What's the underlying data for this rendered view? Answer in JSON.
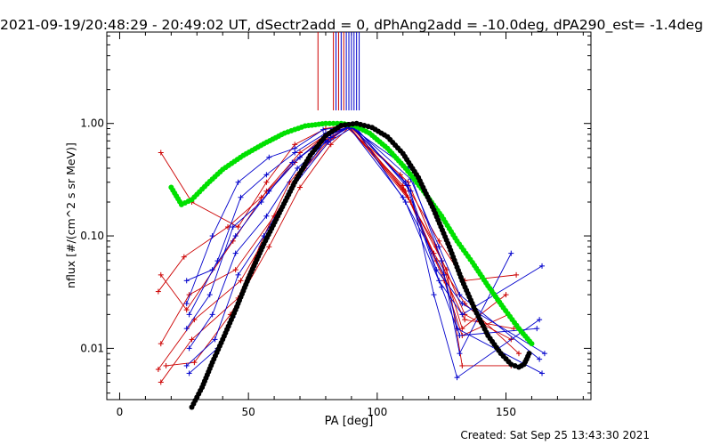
{
  "chart_data": {
    "type": "line",
    "title": "2021-09-19/20:48:29 - 20:49:02 UT, dSectr2add = 0, dPhAng2add = -10.0deg, dPA290_est= -1.4deg",
    "xlabel": "PA [deg]",
    "ylabel": "nflux [#/(cm^2 s sr MeV)]",
    "footer": "Created: Sat Sep 25 13:43:30 2021",
    "xlim": [
      -5,
      183
    ],
    "ylim": [
      0.0035,
      6.5
    ],
    "y_scale": "log",
    "x_ticks": [
      "0",
      "50",
      "100",
      "150"
    ],
    "x_tick_values": [
      0,
      50,
      100,
      150
    ],
    "y_ticks": [
      "0.01",
      "0.10",
      "1.00"
    ],
    "y_tick_values": [
      0.01,
      0.1,
      1.0
    ],
    "grid": false,
    "colors": {
      "red": "#cc0000",
      "blue": "#0000cc",
      "green": "#00e000",
      "black": "#000000"
    },
    "vertical_markers": [
      {
        "x": 77,
        "color": "red"
      },
      {
        "x": 83,
        "color": "red"
      },
      {
        "x": 84,
        "color": "blue"
      },
      {
        "x": 85,
        "color": "red"
      },
      {
        "x": 86,
        "color": "blue"
      },
      {
        "x": 87,
        "color": "red"
      },
      {
        "x": 88,
        "color": "blue"
      },
      {
        "x": 89,
        "color": "blue"
      },
      {
        "x": 90,
        "color": "blue"
      },
      {
        "x": 91,
        "color": "blue"
      },
      {
        "x": 92,
        "color": "blue"
      },
      {
        "x": 93,
        "color": "blue"
      }
    ],
    "series": [
      {
        "color": "red",
        "x": [
          16,
          28,
          46,
          57,
          68,
          80,
          88,
          110,
          123,
          134,
          152
        ],
        "y": [
          0.55,
          0.2,
          0.12,
          0.3,
          0.65,
          0.9,
          0.97,
          0.26,
          0.08,
          0.02,
          0.012
        ]
      },
      {
        "color": "red",
        "x": [
          16,
          26,
          44,
          57,
          70,
          82,
          89,
          112,
          125,
          133,
          150
        ],
        "y": [
          0.045,
          0.022,
          0.09,
          0.25,
          0.55,
          0.85,
          0.96,
          0.3,
          0.06,
          0.015,
          0.03
        ]
      },
      {
        "color": "red",
        "x": [
          15,
          25,
          42,
          55,
          68,
          80,
          90,
          111,
          122,
          134,
          155
        ],
        "y": [
          0.032,
          0.065,
          0.12,
          0.22,
          0.45,
          0.8,
          0.94,
          0.25,
          0.07,
          0.025,
          0.009
        ]
      },
      {
        "color": "red",
        "x": [
          16,
          27,
          45,
          60,
          72,
          83,
          89,
          113,
          127,
          133,
          152
        ],
        "y": [
          0.011,
          0.03,
          0.05,
          0.15,
          0.4,
          0.75,
          0.95,
          0.2,
          0.05,
          0.007,
          0.007
        ]
      },
      {
        "color": "red",
        "x": [
          15,
          29,
          47,
          59,
          69,
          81,
          88,
          109,
          124,
          134,
          154
        ],
        "y": [
          0.0065,
          0.018,
          0.04,
          0.12,
          0.35,
          0.7,
          0.93,
          0.35,
          0.09,
          0.04,
          0.045
        ]
      },
      {
        "color": "red",
        "x": [
          16,
          28,
          46,
          56,
          66,
          80,
          90,
          112,
          126,
          133,
          151
        ],
        "y": [
          0.005,
          0.012,
          0.028,
          0.1,
          0.3,
          0.72,
          0.96,
          0.22,
          0.04,
          0.013,
          0.02
        ]
      },
      {
        "color": "red",
        "x": [
          18,
          29,
          43,
          58,
          70,
          82,
          89,
          110,
          123,
          134,
          153
        ],
        "y": [
          0.007,
          0.0075,
          0.02,
          0.08,
          0.27,
          0.65,
          0.92,
          0.28,
          0.06,
          0.018,
          0.015
        ]
      },
      {
        "color": "blue",
        "x": [
          26,
          36,
          46,
          58,
          68,
          79,
          89,
          112,
          125,
          132,
          152
        ],
        "y": [
          0.025,
          0.1,
          0.3,
          0.5,
          0.6,
          0.88,
          0.95,
          0.4,
          0.06,
          0.009,
          0.07
        ]
      },
      {
        "color": "blue",
        "x": [
          27,
          38,
          47,
          57,
          68,
          80,
          90,
          111,
          124,
          133,
          164
        ],
        "y": [
          0.02,
          0.06,
          0.22,
          0.35,
          0.55,
          0.82,
          0.94,
          0.3,
          0.04,
          0.02,
          0.054
        ]
      },
      {
        "color": "blue",
        "x": [
          26,
          35,
          44,
          55,
          67,
          81,
          91,
          113,
          122,
          131,
          163
        ],
        "y": [
          0.015,
          0.03,
          0.12,
          0.2,
          0.45,
          0.78,
          0.96,
          0.25,
          0.03,
          0.0055,
          0.018
        ]
      },
      {
        "color": "blue",
        "x": [
          27,
          36,
          45,
          57,
          69,
          82,
          89,
          110,
          126,
          132,
          162
        ],
        "y": [
          0.01,
          0.02,
          0.07,
          0.15,
          0.4,
          0.75,
          0.93,
          0.22,
          0.045,
          0.013,
          0.015
        ]
      },
      {
        "color": "blue",
        "x": [
          26,
          37,
          46,
          56,
          68,
          80,
          90,
          112,
          123,
          133,
          165
        ],
        "y": [
          0.007,
          0.012,
          0.045,
          0.1,
          0.3,
          0.7,
          0.95,
          0.28,
          0.05,
          0.025,
          0.009
        ]
      },
      {
        "color": "blue",
        "x": [
          27,
          38,
          44,
          55,
          66,
          81,
          91,
          111,
          125,
          131,
          164
        ],
        "y": [
          0.006,
          0.01,
          0.019,
          0.08,
          0.25,
          0.68,
          0.94,
          0.2,
          0.035,
          0.015,
          0.006
        ]
      },
      {
        "color": "blue",
        "x": [
          26,
          36,
          45,
          58,
          70,
          82,
          90,
          113,
          124,
          132,
          163
        ],
        "y": [
          0.04,
          0.05,
          0.1,
          0.25,
          0.5,
          0.8,
          0.96,
          0.32,
          0.08,
          0.03,
          0.008
        ]
      },
      {
        "color": "green",
        "dotted": true,
        "x": [
          20,
          24,
          28,
          34,
          40,
          48,
          56,
          64,
          72,
          80,
          86,
          91,
          97,
          104,
          111,
          118,
          125,
          131,
          137,
          143,
          149,
          155,
          160
        ],
        "y": [
          0.27,
          0.19,
          0.21,
          0.29,
          0.39,
          0.52,
          0.66,
          0.82,
          0.95,
          1.0,
          1.0,
          0.96,
          0.82,
          0.6,
          0.4,
          0.25,
          0.15,
          0.09,
          0.058,
          0.036,
          0.023,
          0.015,
          0.011
        ]
      },
      {
        "color": "black",
        "dotted": true,
        "x": [
          28,
          32,
          36,
          40,
          45,
          50,
          56,
          62,
          68,
          74,
          80,
          86,
          92,
          98,
          104,
          110,
          116,
          122,
          128,
          133,
          138,
          143,
          148,
          152,
          155,
          157,
          158,
          159
        ],
        "y": [
          0.003,
          0.0045,
          0.0075,
          0.012,
          0.022,
          0.042,
          0.085,
          0.16,
          0.3,
          0.52,
          0.78,
          0.96,
          1.0,
          0.92,
          0.76,
          0.54,
          0.33,
          0.17,
          0.08,
          0.04,
          0.022,
          0.013,
          0.009,
          0.0072,
          0.0068,
          0.0072,
          0.008,
          0.009
        ]
      }
    ]
  }
}
